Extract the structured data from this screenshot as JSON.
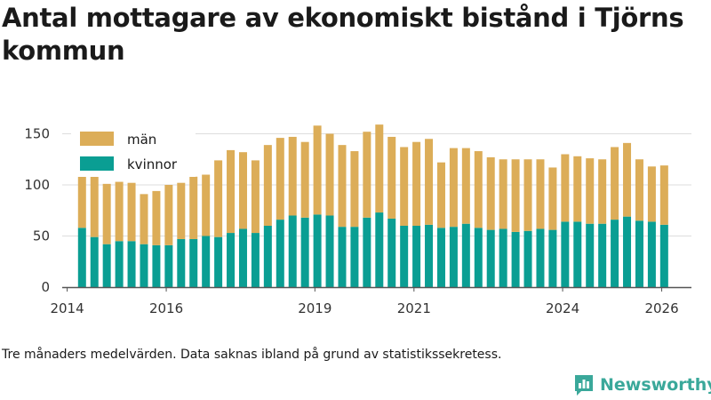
{
  "title": "Antal mottagare av ekonomiskt bistånd i Tjörns kommun",
  "note": "Tre månaders medelvärden. Data saknas ibland på grund av statistikssekretess.",
  "brand": {
    "name": "Newsworthy",
    "icon": "bar-chart-logo-icon"
  },
  "colors": {
    "men": "#dcad58",
    "women": "#0a9e93",
    "axis": "#555555",
    "grid": "#dddddd"
  },
  "chart_data": {
    "type": "bar",
    "stacked": true,
    "title": "Antal mottagare av ekonomiskt bistånd i Tjörns kommun",
    "xlabel": "",
    "ylabel": "",
    "x_range": [
      2013.9,
      2026.6
    ],
    "ylim": [
      0,
      160
    ],
    "y_ticks": [
      0,
      50,
      100,
      150
    ],
    "x_ticks": [
      {
        "value": 2014,
        "label": "2014"
      },
      {
        "value": 2016,
        "label": "2016"
      },
      {
        "value": 2019,
        "label": "2019"
      },
      {
        "value": 2021,
        "label": "2021"
      },
      {
        "value": 2024,
        "label": "2024"
      },
      {
        "value": 2026,
        "label": "2026"
      }
    ],
    "legend": {
      "position": "top-left",
      "entries": [
        "män",
        "kvinnor"
      ]
    },
    "grid": true,
    "x": [
      2014.3,
      2014.55,
      2014.8,
      2015.05,
      2015.3,
      2015.55,
      2015.8,
      2016.05,
      2016.3,
      2016.55,
      2016.8,
      2017.05,
      2017.3,
      2017.55,
      2017.8,
      2018.05,
      2018.3,
      2018.55,
      2018.8,
      2019.05,
      2019.3,
      2019.55,
      2019.8,
      2020.05,
      2020.3,
      2020.55,
      2020.8,
      2021.05,
      2021.3,
      2021.55,
      2021.8,
      2022.05,
      2022.3,
      2022.55,
      2022.8,
      2023.05,
      2023.3,
      2023.55,
      2023.8,
      2024.05,
      2024.3,
      2024.55,
      2024.8,
      2025.05,
      2025.3,
      2025.55,
      2025.8,
      2026.05
    ],
    "series": [
      {
        "name": "kvinnor",
        "color": "#0a9e93",
        "values": [
          58,
          49,
          42,
          45,
          45,
          42,
          41,
          41,
          47,
          47,
          50,
          49,
          53,
          57,
          53,
          60,
          66,
          70,
          68,
          71,
          70,
          59,
          59,
          68,
          73,
          67,
          60,
          60,
          61,
          58,
          59,
          62,
          58,
          56,
          57,
          54,
          55,
          57,
          56,
          64,
          64,
          62,
          62,
          66,
          69,
          65,
          64,
          61
        ]
      },
      {
        "name": "män",
        "color": "#dcad58",
        "values": [
          55,
          64,
          59,
          58,
          57,
          49,
          53,
          59,
          55,
          61,
          60,
          75,
          81,
          75,
          71,
          79,
          80,
          77,
          74,
          87,
          80,
          80,
          74,
          84,
          86,
          80,
          77,
          82,
          84,
          64,
          77,
          74,
          75,
          71,
          68,
          71,
          70,
          68,
          61,
          66,
          64,
          64,
          63,
          71,
          72,
          60,
          54,
          58
        ]
      }
    ]
  }
}
